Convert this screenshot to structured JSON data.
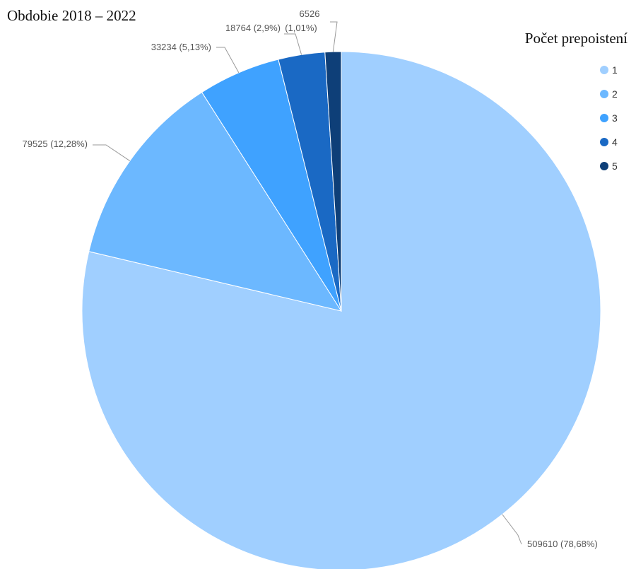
{
  "chart_data": {
    "type": "pie",
    "title": "Obdobie 2018 – 2022",
    "legend_title": "Počet prepoistení",
    "legend_position": "top-right",
    "slices": [
      {
        "category": "1",
        "value": 509610,
        "percent_label": "78,68%",
        "label_text": "509610 (78,68%)",
        "color": "#A0CFFF"
      },
      {
        "category": "2",
        "value": 79525,
        "percent_label": "12,28%",
        "label_text": "79525 (12,28%)",
        "color": "#6CB8FF"
      },
      {
        "category": "3",
        "value": 33234,
        "percent_label": "5,13%",
        "label_text": "33234 (5,13%)",
        "color": "#3FA2FF"
      },
      {
        "category": "4",
        "value": 18764,
        "percent_label": "2,9%",
        "label_text": "18764 (2,9%)",
        "color": "#1A69C4"
      },
      {
        "category": "5",
        "value": 6526,
        "percent_label": "1,01%",
        "label_value": "6526",
        "label_percent": "(1,01%)",
        "color": "#0E3F78"
      }
    ]
  }
}
